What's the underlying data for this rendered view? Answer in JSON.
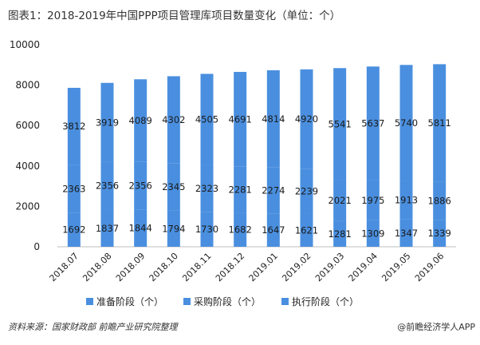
{
  "title": "图表1：2018-2019年中国PPP项目管理库项目数量变化（单位：个）",
  "source": "资料来源：国家财政部  前瞻产业研究院整理",
  "brand": "@前瞻经济学人APP",
  "chart_data": {
    "type": "bar",
    "stacked": true,
    "categories": [
      "2018.07",
      "2018.08",
      "2018.09",
      "2018.10",
      "2018.11",
      "2018.12",
      "2019.01",
      "2019.02",
      "2019.03",
      "2019.04",
      "2019.05",
      "2019.06"
    ],
    "series": [
      {
        "name": "准备阶段（个）",
        "values": [
          1692,
          1837,
          1844,
          1794,
          1730,
          1682,
          1647,
          1621,
          1281,
          1309,
          1347,
          1339
        ]
      },
      {
        "name": "采购阶段（个）",
        "values": [
          2363,
          2356,
          2356,
          2345,
          2323,
          2281,
          2274,
          2239,
          2021,
          1975,
          1913,
          1886
        ]
      },
      {
        "name": "执行阶段（个）",
        "values": [
          3812,
          3919,
          4089,
          4302,
          4505,
          4691,
          4814,
          4920,
          5541,
          5637,
          5740,
          5811
        ]
      }
    ],
    "ylim": [
      0,
      10000
    ],
    "yticks": [
      0,
      2000,
      4000,
      6000,
      8000,
      10000
    ],
    "colors": {
      "bar": "#4a8fdf",
      "label": "#1a1a1a"
    },
    "grid": false,
    "legend": "bottom"
  }
}
